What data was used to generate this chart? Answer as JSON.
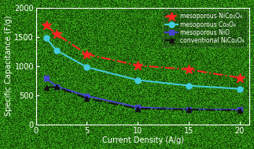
{
  "title": "",
  "xlabel": "Current Density (A/g)",
  "ylabel": "Specific Capacitance (F/g)",
  "xlim": [
    0,
    21
  ],
  "ylim": [
    0,
    2000
  ],
  "xticks": [
    0,
    5,
    10,
    15,
    20
  ],
  "yticks": [
    0,
    500,
    1000,
    1500,
    2000
  ],
  "bg_color_dark": [
    20,
    90,
    10
  ],
  "bg_color_light": [
    60,
    160,
    30
  ],
  "series": [
    {
      "label": "mesoporous NiCo₂O₄",
      "x": [
        1,
        2,
        5,
        10,
        15,
        20
      ],
      "y": [
        1700,
        1550,
        1200,
        1010,
        940,
        800
      ],
      "color": "#ff2222",
      "marker": "*",
      "markersize": 9,
      "linestyle": "-.",
      "linewidth": 1.4
    },
    {
      "label": "mesoporous Co₃O₄",
      "x": [
        1,
        2,
        5,
        10,
        15,
        20
      ],
      "y": [
        1480,
        1270,
        980,
        760,
        665,
        610
      ],
      "color": "#44ccdd",
      "marker": "o",
      "markersize": 5,
      "linestyle": "-",
      "linewidth": 1.4
    },
    {
      "label": "mesoporous NiO",
      "x": [
        1,
        2,
        5,
        10,
        15,
        20
      ],
      "y": [
        790,
        650,
        490,
        295,
        260,
        255
      ],
      "color": "#4444cc",
      "marker": "s",
      "markersize": 4,
      "linestyle": "-",
      "linewidth": 1.4
    },
    {
      "label": "conventional NiCo₂O₄",
      "x": [
        1,
        2,
        5,
        10,
        15,
        20
      ],
      "y": [
        635,
        640,
        450,
        270,
        255,
        240
      ],
      "color": "#111111",
      "marker": "^",
      "markersize": 5,
      "linestyle": "-.",
      "linewidth": 1.4
    }
  ],
  "legend_loc": "upper right",
  "font_color": "white",
  "axis_font_size": 7,
  "label_font_size": 7,
  "legend_font_size": 5.5
}
